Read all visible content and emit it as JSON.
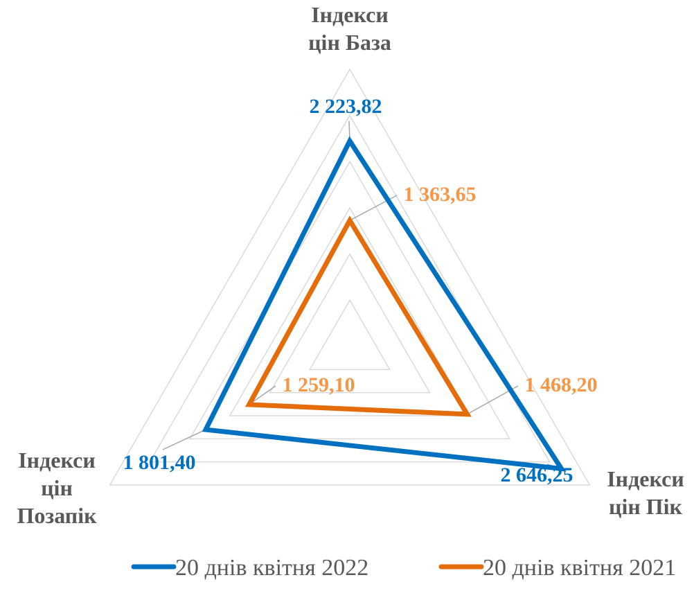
{
  "chart_data": {
    "type": "radar",
    "categories": [
      "Індекси цін База",
      "Індекси цін Пік",
      "Індекси цін Позапік"
    ],
    "category_lines": [
      [
        "Індекси",
        "цін База"
      ],
      [
        "Індекси",
        "цін Пік"
      ],
      [
        "Індекси",
        "цін",
        "Позапік"
      ]
    ],
    "rmax": 3000,
    "grid_step": 500,
    "series": [
      {
        "name": "20 днів квітня 2022",
        "values": [
          2223.82,
          2646.25,
          1801.4
        ],
        "labels": [
          "2 223,82",
          "2 646,25",
          "1 801,40"
        ],
        "color": "#0070C0",
        "label_color": "#0070C0"
      },
      {
        "name": "20 днів квітня 2021",
        "values": [
          1363.65,
          1468.2,
          1259.1
        ],
        "labels": [
          "1 363,65",
          "1 468,20",
          "1 259,10"
        ],
        "color": "#E46C0A",
        "label_color": "#F79646"
      }
    ],
    "legend_position": "bottom",
    "grid": true
  }
}
